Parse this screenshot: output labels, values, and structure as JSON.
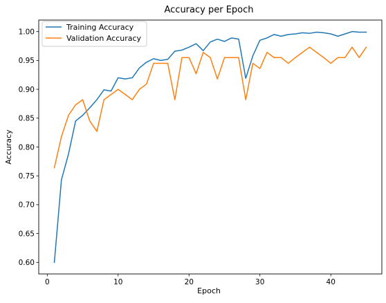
{
  "chart_data": {
    "type": "line",
    "title": "Accuracy per Epoch",
    "xlabel": "Epoch",
    "ylabel": "Accuracy",
    "xlim": [
      -1.2,
      47.2
    ],
    "ylim": [
      0.58,
      1.02
    ],
    "xticks": [
      0,
      10,
      20,
      30,
      40
    ],
    "xtick_labels": [
      "0",
      "10",
      "20",
      "30",
      "40"
    ],
    "yticks": [
      0.6,
      0.65,
      0.7,
      0.75,
      0.8,
      0.85,
      0.9,
      0.95,
      1.0
    ],
    "ytick_labels": [
      "0.60",
      "0.65",
      "0.70",
      "0.75",
      "0.80",
      "0.85",
      "0.90",
      "0.95",
      "1.00"
    ],
    "grid": false,
    "legend_position": "top-left",
    "x": [
      1,
      2,
      3,
      4,
      5,
      6,
      7,
      8,
      9,
      10,
      11,
      12,
      13,
      14,
      15,
      16,
      17,
      18,
      19,
      20,
      21,
      22,
      23,
      24,
      25,
      26,
      27,
      28,
      29,
      30,
      31,
      32,
      33,
      34,
      35,
      36,
      37,
      38,
      39,
      40,
      41,
      42,
      43,
      44,
      45
    ],
    "series": [
      {
        "name": "Training Accuracy",
        "color": "#1f77b4",
        "values": [
          0.6,
          0.743,
          0.788,
          0.845,
          0.855,
          0.868,
          0.882,
          0.899,
          0.897,
          0.92,
          0.918,
          0.92,
          0.937,
          0.947,
          0.953,
          0.95,
          0.952,
          0.966,
          0.968,
          0.973,
          0.979,
          0.967,
          0.982,
          0.987,
          0.983,
          0.989,
          0.987,
          0.919,
          0.958,
          0.985,
          0.989,
          0.995,
          0.992,
          0.995,
          0.996,
          0.998,
          0.997,
          0.999,
          0.998,
          0.996,
          0.992,
          0.996,
          1.0,
          0.999,
          0.999
        ]
      },
      {
        "name": "Validation Accuracy",
        "color": "#ff7f0e",
        "values": [
          0.764,
          0.818,
          0.855,
          0.873,
          0.882,
          0.845,
          0.827,
          0.882,
          0.891,
          0.9,
          0.891,
          0.882,
          0.9,
          0.909,
          0.945,
          0.945,
          0.945,
          0.882,
          0.955,
          0.955,
          0.927,
          0.964,
          0.955,
          0.918,
          0.955,
          0.955,
          0.955,
          0.882,
          0.945,
          0.936,
          0.964,
          0.955,
          0.955,
          0.945,
          0.955,
          0.964,
          0.973,
          0.964,
          0.955,
          0.945,
          0.955,
          0.955,
          0.973,
          0.955,
          0.973
        ]
      }
    ]
  }
}
